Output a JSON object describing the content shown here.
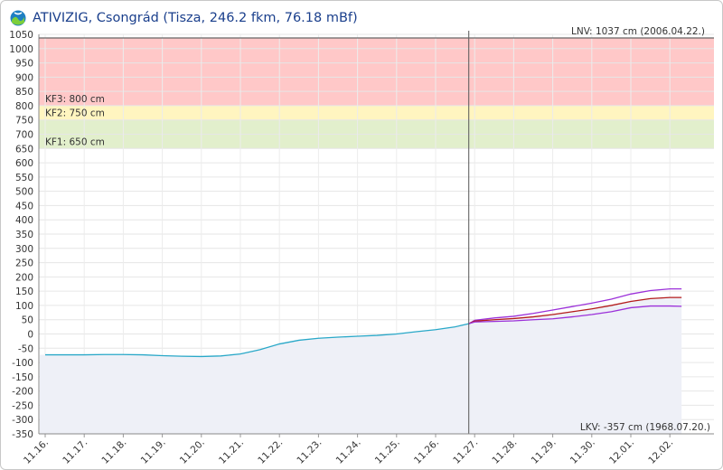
{
  "header": {
    "title": "ATIVIZIG, Csongrád (Tisza, 246.2 fkm, 76.18 mBf)"
  },
  "colors": {
    "observed": "#29a8c8",
    "forecast_mid": "#b31b1b",
    "forecast_band": "#9b30d9",
    "kf3_zone": "#ffc8c8",
    "kf2_zone": "#fff5c0",
    "kf1_zone": "#e2efcc",
    "area_fill": "#eef0f7"
  },
  "chart_data": {
    "type": "line",
    "ylim": [
      -350,
      1050
    ],
    "y_ticks": [
      -350,
      -300,
      -250,
      -200,
      -150,
      -100,
      -50,
      0,
      50,
      100,
      150,
      200,
      250,
      300,
      350,
      400,
      450,
      500,
      550,
      600,
      650,
      700,
      750,
      800,
      850,
      900,
      950,
      1000,
      1050
    ],
    "x_tick_labels": [
      "11.16.",
      "11.17.",
      "11.18.",
      "11.19.",
      "11.20.",
      "11.21.",
      "11.22.",
      "11.23.",
      "11.24.",
      "11.25.",
      "11.26.",
      "11.27.",
      "11.28.",
      "11.29.",
      "11.30.",
      "12.01.",
      "12.02."
    ],
    "current_time_day": 10.85,
    "thresholds": [
      {
        "label": "KF3: 800 cm",
        "value": 800
      },
      {
        "label": "KF2: 750 cm",
        "value": 750
      },
      {
        "label": "KF1: 650 cm",
        "value": 650
      }
    ],
    "annotations": {
      "lnv": "LNV: 1037 cm (2006.04.22.)",
      "lnv_value": 1037,
      "lkv": "LKV: -357 cm (1968.07.20.)"
    },
    "series": [
      {
        "role": "observed",
        "x": [
          0,
          0.5,
          1,
          1.5,
          2,
          2.5,
          3,
          3.5,
          4,
          4.5,
          5,
          5.5,
          6,
          6.5,
          7,
          7.5,
          8,
          8.5,
          9,
          9.5,
          10,
          10.5,
          10.85
        ],
        "values": [
          -73,
          -73,
          -73,
          -72,
          -72,
          -73,
          -76,
          -78,
          -79,
          -77,
          -70,
          -55,
          -35,
          -22,
          -15,
          -11,
          -8,
          -5,
          0,
          8,
          15,
          25,
          36
        ]
      },
      {
        "role": "forecast_upper",
        "x": [
          10.85,
          11,
          11.5,
          12,
          12.5,
          13,
          13.5,
          14,
          14.5,
          15,
          15.5,
          16,
          16.3
        ],
        "values": [
          36,
          48,
          56,
          62,
          72,
          84,
          96,
          108,
          122,
          140,
          152,
          158,
          158
        ]
      },
      {
        "role": "forecast_mid",
        "x": [
          10.85,
          11,
          11.5,
          12,
          12.5,
          13,
          13.5,
          14,
          14.5,
          15,
          15.5,
          16,
          16.3
        ],
        "values": [
          36,
          45,
          50,
          54,
          60,
          68,
          78,
          88,
          100,
          114,
          124,
          128,
          128
        ]
      },
      {
        "role": "forecast_lower",
        "x": [
          10.85,
          11,
          11.5,
          12,
          12.5,
          13,
          13.5,
          14,
          14.5,
          15,
          15.5,
          16,
          16.3
        ],
        "values": [
          36,
          42,
          44,
          46,
          50,
          53,
          60,
          68,
          78,
          92,
          98,
          98,
          97
        ]
      }
    ]
  }
}
